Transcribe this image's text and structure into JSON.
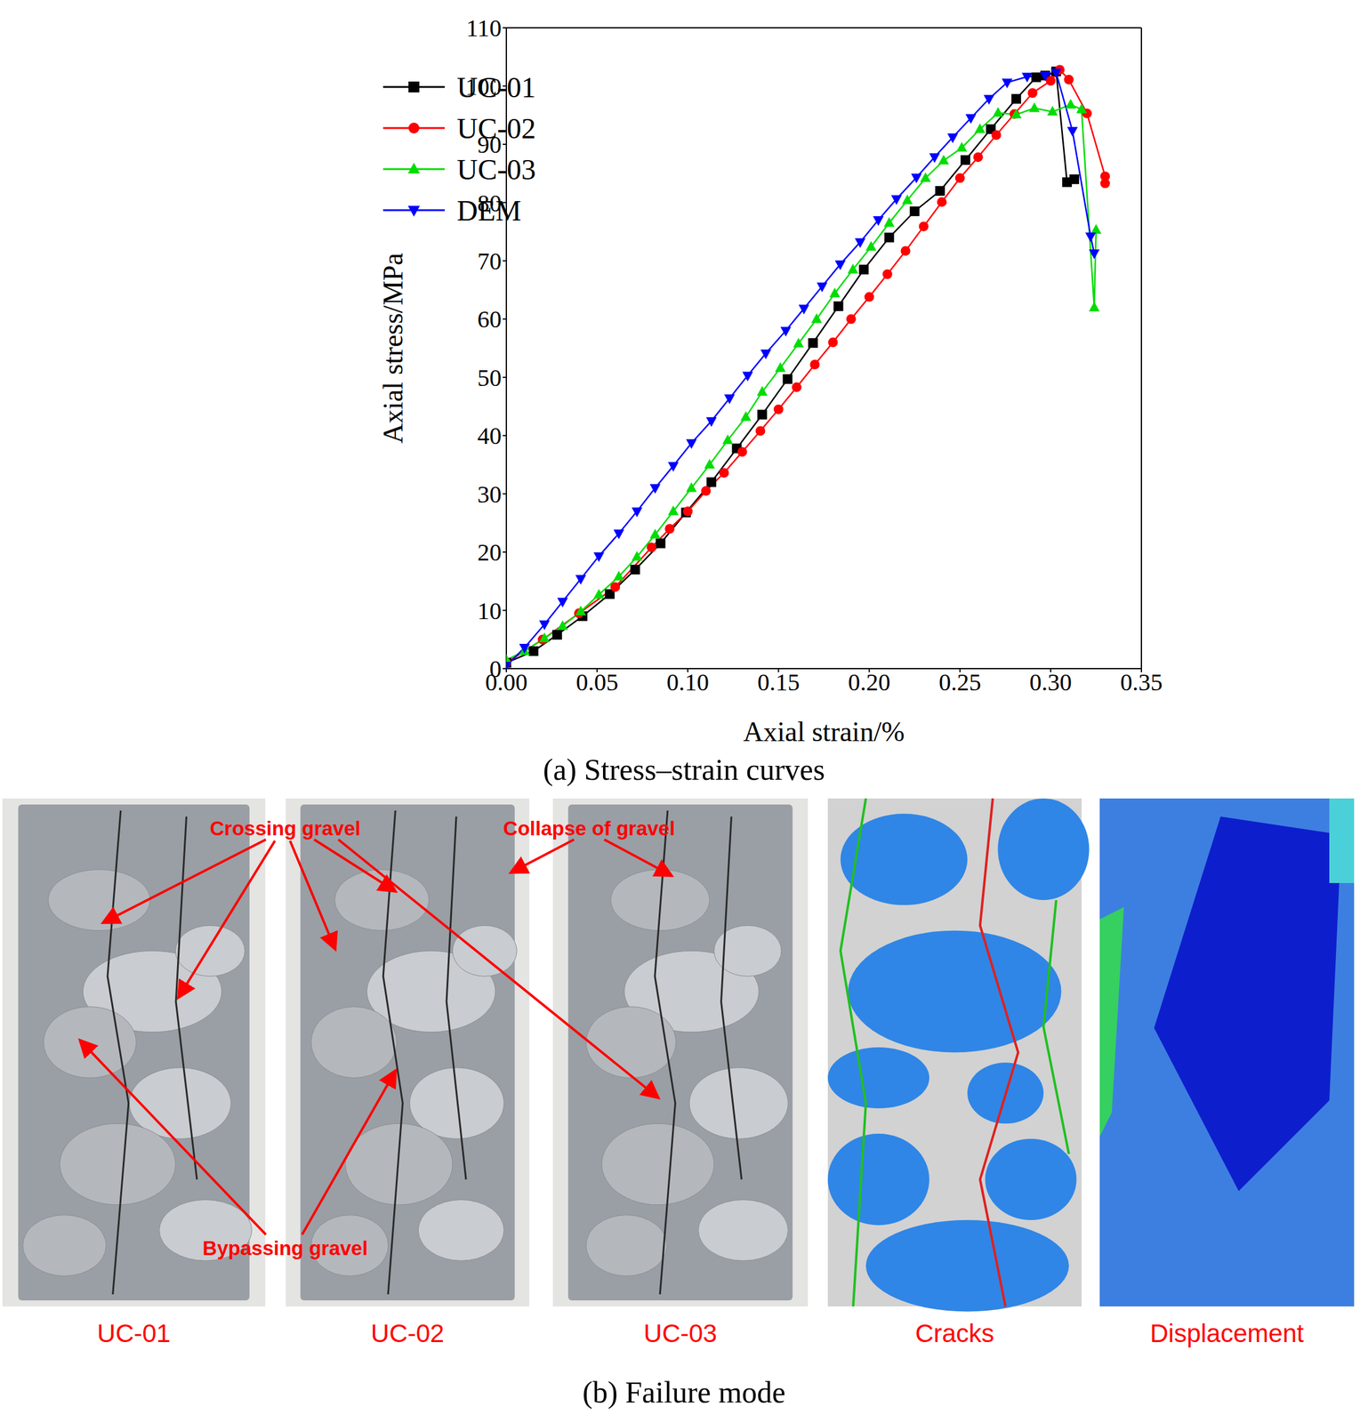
{
  "chart_data": {
    "type": "line",
    "caption": "(a) Stress–strain curves",
    "x_label": "Axial strain/%",
    "y_label": "Axial stress/MPa",
    "xlim": [
      0,
      0.35
    ],
    "xticks": [
      {
        "value": 0,
        "label": "0.00"
      },
      {
        "value": 0.05,
        "label": "0.05"
      },
      {
        "value": 0.1,
        "label": "0.10"
      },
      {
        "value": 0.15,
        "label": "0.15"
      },
      {
        "value": 0.2,
        "label": "0.20"
      },
      {
        "value": 0.25,
        "label": "0.25"
      },
      {
        "value": 0.3,
        "label": "0.30"
      },
      {
        "value": 0.35,
        "label": "0.35"
      }
    ],
    "ylim": [
      0,
      110
    ],
    "yticks": [
      0,
      10,
      20,
      30,
      40,
      50,
      60,
      70,
      80,
      90,
      100,
      110
    ],
    "grid": false,
    "legend": "upper left",
    "series": [
      {
        "name": "UC-01",
        "color": "#000000",
        "marker": "square",
        "x": [
          0,
          0.015,
          0.028,
          0.042,
          0.057,
          0.071,
          0.085,
          0.099,
          0.113,
          0.127,
          0.141,
          0.155,
          0.169,
          0.183,
          0.197,
          0.211,
          0.225,
          0.239,
          0.253,
          0.267,
          0.281,
          0.292,
          0.297,
          0.303,
          0.309,
          0.313
        ],
        "values": [
          1,
          3,
          5.8,
          9,
          12.8,
          17,
          21.5,
          26.8,
          32,
          37.8,
          43.6,
          49.7,
          55.9,
          62.2,
          68.5,
          74,
          78.5,
          82,
          87.3,
          92.6,
          97.8,
          101.5,
          101.8,
          102.5,
          83.5,
          84
        ]
      },
      {
        "name": "UC-02",
        "color": "#ff0000",
        "marker": "circle",
        "x": [
          0,
          0.02,
          0.04,
          0.06,
          0.08,
          0.09,
          0.1,
          0.11,
          0.12,
          0.13,
          0.14,
          0.15,
          0.16,
          0.17,
          0.18,
          0.19,
          0.2,
          0.21,
          0.22,
          0.23,
          0.24,
          0.25,
          0.26,
          0.27,
          0.28,
          0.29,
          0.3,
          0.305,
          0.31,
          0.32,
          0.33,
          0.33
        ],
        "values": [
          1,
          5,
          9.5,
          14,
          20.8,
          24,
          27,
          30.5,
          33.6,
          37.2,
          40.8,
          44.5,
          48.3,
          52.2,
          56,
          60,
          63.8,
          67.7,
          71.7,
          75.9,
          80.1,
          84.2,
          87.8,
          91.6,
          95.2,
          98.8,
          100.9,
          102.8,
          101.1,
          95.3,
          84.5,
          83.3
        ]
      },
      {
        "name": "UC-03",
        "color": "#00dd00",
        "marker": "triangle",
        "x": [
          0,
          0.01,
          0.021,
          0.031,
          0.041,
          0.051,
          0.062,
          0.072,
          0.082,
          0.092,
          0.102,
          0.112,
          0.122,
          0.132,
          0.141,
          0.151,
          0.161,
          0.171,
          0.181,
          0.191,
          0.201,
          0.211,
          0.221,
          0.231,
          0.241,
          0.251,
          0.261,
          0.271,
          0.281,
          0.291,
          0.301,
          0.311,
          0.317,
          0.324,
          0.325
        ],
        "values": [
          1.5,
          3,
          5.2,
          7.3,
          9.8,
          12.7,
          15.8,
          19.2,
          23,
          27,
          31,
          35,
          39.2,
          43.2,
          47.5,
          51.6,
          55.8,
          60,
          64.4,
          68.5,
          72.4,
          76.5,
          80.4,
          84.2,
          87.2,
          89.4,
          92.6,
          95.4,
          95.1,
          96.2,
          95.6,
          96.8,
          96,
          62,
          75.3
        ]
      },
      {
        "name": "DEM",
        "color": "#0000ff",
        "marker": "triangle-down",
        "x": [
          0,
          0.01,
          0.021,
          0.031,
          0.041,
          0.051,
          0.062,
          0.072,
          0.082,
          0.092,
          0.102,
          0.113,
          0.123,
          0.133,
          0.143,
          0.154,
          0.164,
          0.174,
          0.184,
          0.195,
          0.205,
          0.215,
          0.226,
          0.236,
          0.246,
          0.256,
          0.266,
          0.276,
          0.287,
          0.297,
          0.303,
          0.312,
          0.322,
          0.324
        ],
        "values": [
          0.5,
          3.6,
          7.6,
          11.5,
          15.4,
          19.3,
          23.2,
          27,
          31,
          34.8,
          38.7,
          42.5,
          46.4,
          50.3,
          54.1,
          58,
          61.8,
          65.6,
          69.4,
          73.2,
          77,
          80.6,
          84.3,
          87.8,
          91.2,
          94.5,
          97.8,
          100.6,
          101.6,
          101.8,
          102.3,
          92.3,
          74.2,
          71.3
        ]
      }
    ]
  },
  "failure_mode": {
    "caption": "(b) Failure mode",
    "panels": [
      "UC-01",
      "UC-02",
      "UC-03",
      "Cracks",
      "Displacement"
    ],
    "annotations": {
      "crossing": "Crossing gravel",
      "collapse": "Collapse of gravel",
      "bypassing": "Bypassing gravel"
    }
  }
}
